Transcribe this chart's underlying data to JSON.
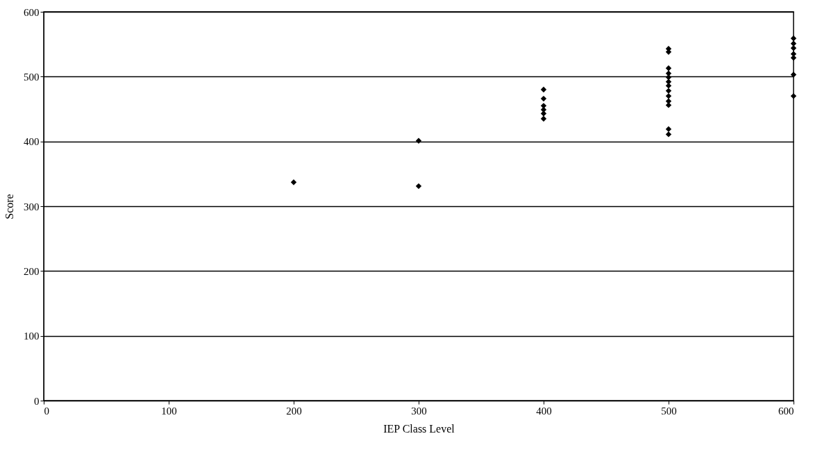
{
  "chart_data": {
    "type": "scatter",
    "xlabel": "IEP Class Level",
    "ylabel": "Score",
    "xlim": [
      0,
      600
    ],
    "xticks": [
      0,
      100,
      200,
      300,
      400,
      500,
      600
    ],
    "ylim": [
      0,
      600
    ],
    "yticks": [
      0,
      100,
      200,
      300,
      400,
      500,
      600
    ],
    "grid": "y",
    "marker": "diamond",
    "series": [
      {
        "color": "#000000",
        "x": [
          200,
          300,
          300,
          400,
          400,
          400,
          400,
          400,
          400,
          500,
          500,
          500,
          500,
          500,
          500,
          500,
          500,
          500,
          500,
          500,
          500,
          500,
          600,
          600,
          600,
          600,
          600,
          600,
          600
        ],
        "values": [
          337,
          401,
          331,
          480,
          466,
          455,
          449,
          443,
          435,
          543,
          538,
          513,
          505,
          499,
          492,
          486,
          478,
          470,
          462,
          456,
          419,
          411,
          559,
          551,
          544,
          535,
          529,
          503,
          470
        ]
      }
    ]
  }
}
